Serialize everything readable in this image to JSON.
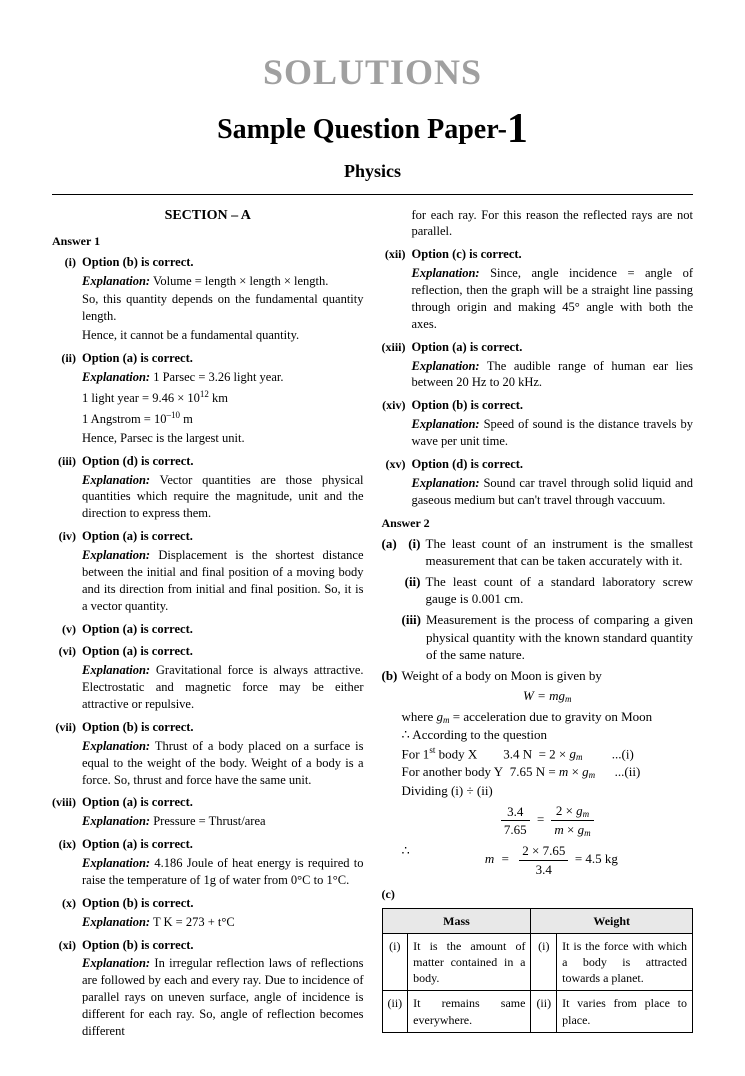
{
  "header": {
    "solutions": "SOLUTIONS",
    "paper_prefix": "Sample Question Paper-",
    "paper_num": "1",
    "subject": "Physics"
  },
  "section_a": "SECTION – A",
  "answer1": {
    "label": "Answer 1",
    "items": [
      {
        "num": "(i)",
        "opt": "Option (b) is correct.",
        "lines": [
          "<span class='expl-label'>Explanation:</span> Volume = length × length × length.",
          "So, this quantity depends on the fundamental quantity length.",
          "Hence, it cannot be a fundamental quantity."
        ]
      },
      {
        "num": "(ii)",
        "opt": "Option (a) is correct.",
        "lines": [
          "<span class='expl-label'>Explanation:</span> 1 Parsec = 3.26 light year.",
          "1 light year = 9.46 × 10<sup>12</sup> km",
          "1 Angstrom = 10<sup>–10</sup> m",
          "Hence, Parsec is the largest unit."
        ]
      },
      {
        "num": "(iii)",
        "opt": "Option (d) is correct.",
        "lines": [
          "<span class='expl-label'>Explanation:</span> Vector quantities are those physical quantities which require the magnitude, unit and the direction to express them."
        ]
      },
      {
        "num": "(iv)",
        "opt": "Option (a) is correct.",
        "lines": [
          "<span class='expl-label'>Explanation:</span> Displacement is the shortest distance between the initial and final position of a moving body and its direction from initial and final position. So, it is a vector quantity."
        ]
      },
      {
        "num": "(v)",
        "opt": "Option (a) is correct.",
        "lines": []
      },
      {
        "num": "(vi)",
        "opt": "Option (a) is correct.",
        "lines": [
          "<span class='expl-label'>Explanation:</span> Gravitational force is always attractive. Electrostatic and magnetic force may be either attractive or repulsive."
        ]
      },
      {
        "num": "(vii)",
        "opt": "Option (b) is correct.",
        "lines": [
          "<span class='expl-label'>Explanation:</span> Thrust of a body placed on a surface is equal to the weight of the body. Weight of a body is a force. So, thrust and force have the same unit."
        ]
      },
      {
        "num": "(viii)",
        "opt": "Option (a) is correct.",
        "lines": [
          "<span class='expl-label'>Explanation:</span> Pressure = Thrust/area"
        ]
      },
      {
        "num": "(ix)",
        "opt": "Option (a) is correct.",
        "lines": [
          "<span class='expl-label'>Explanation:</span> 4.186 Joule of heat energy is required to raise the temperature of 1g of water from 0°C to 1°C."
        ]
      },
      {
        "num": "(x)",
        "opt": "Option (b) is correct.",
        "lines": [
          "<span class='expl-label'>Explanation:</span> T K = 273 + t°C"
        ]
      },
      {
        "num": "(xi)",
        "opt": "Option (b) is correct.",
        "lines": [
          "<span class='expl-label'>Explanation:</span> In irregular reflection laws of reflections are followed by each and every ray. Due to incidence of parallel rays on uneven surface, angle of incidence is different for each ray. So, angle of reflection becomes different"
        ]
      }
    ]
  },
  "col2_continue": "for each ray. For this reason the reflected rays are not parallel.",
  "col2_items": [
    {
      "num": "(xii)",
      "opt": "Option (c) is correct.",
      "lines": [
        "<span class='expl-label'>Explanation:</span> Since, angle incidence = angle of reflection, then the graph will be a straight line passing through origin and making 45° angle with both the axes."
      ]
    },
    {
      "num": "(xiii)",
      "opt": "Option (a) is correct.",
      "lines": [
        "<span class='expl-label'>Explanation:</span> The audible range of human ear lies between 20 Hz to 20 kHz."
      ]
    },
    {
      "num": "(xiv)",
      "opt": "Option (b) is correct.",
      "lines": [
        "<span class='expl-label'>Explanation:</span> Speed of sound is the distance travels by wave per unit time."
      ]
    },
    {
      "num": "(xv)",
      "opt": "Option (d) is correct.",
      "lines": [
        "<span class='expl-label'>Explanation:</span> Sound car travel through solid liquid and gaseous medium but can't travel through vaccuum."
      ]
    }
  ],
  "answer2": {
    "label": "Answer 2",
    "a": {
      "i": "The least count of an instrument is the smallest measurement that can be taken accurately with it.",
      "ii": "The least count of a standard laboratory screw gauge is 0.001 cm.",
      "iii": "Measurement is the process of comparing a given physical quantity with the known standard quantity of the same nature."
    },
    "b": {
      "intro": "Weight of a body on Moon is given by",
      "eq1": "W = mg<sub class='s'>m</sub>",
      "where": "where <i>g<sub class='s'>m</sub></i> = acceleration due to gravity on Moon",
      "acc": "∴ According to the question",
      "row1": "For 1<sup>st</sup> body X&nbsp;&nbsp;&nbsp;&nbsp;&nbsp;&nbsp;&nbsp;&nbsp;3.4 N &nbsp;= 2 × <i>g<sub class='s'>m</sub></i>&nbsp;&nbsp;&nbsp;&nbsp;&nbsp;&nbsp;&nbsp;&nbsp;&nbsp;...(i)",
      "row2": "For another body Y&nbsp;&nbsp;7.65 N = <i>m</i> × <i>g<sub class='s'>m</sub></i>&nbsp;&nbsp;&nbsp;&nbsp;&nbsp;&nbsp;...(ii)",
      "div": "Dividing (i) ÷ (ii)",
      "frac1_num": "3.4",
      "frac1_den": "7.65",
      "frac2_num": "2 × <i>g<sub class='s'>m</sub></i>",
      "frac2_den": "<i>m</i> × <i>g<sub class='s'>m</sub></i>",
      "therefore": "∴",
      "m_eq": "m",
      "frac3_num": "2 × 7.65",
      "frac3_den": "3.4",
      "result": "= 4.5 kg"
    },
    "c_label": "(c)",
    "table": {
      "h1": "Mass",
      "h2": "Weight",
      "r1n": "(i)",
      "r1m": "It is the amount of matter contained in a body.",
      "r1w": "It is the force with which a body is attracted towards a planet.",
      "r2n": "(ii)",
      "r2m": "It remains same everywhere.",
      "r2w": "It varies from place to place."
    }
  }
}
